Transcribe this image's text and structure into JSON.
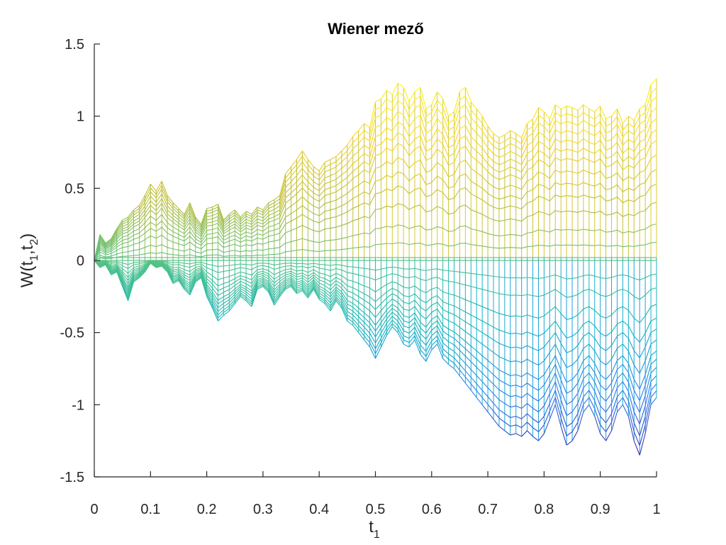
{
  "chart_data": {
    "type": "line",
    "title": "Wiener mező",
    "xlabel": "t",
    "xlabel_subscript": "1",
    "ylabel": {
      "main": "W(t",
      "sub1": "1",
      "mid": ",t",
      "sub2": "2",
      "end": ")"
    },
    "xlim": [
      0,
      1
    ],
    "ylim": [
      -1.5,
      1.5
    ],
    "xticks": [
      0,
      0.1,
      0.2,
      0.3,
      0.4,
      0.5,
      0.6,
      0.7,
      0.8,
      0.9,
      1
    ],
    "xtick_labels": [
      "0",
      "0.1",
      "0.2",
      "0.3",
      "0.4",
      "0.5",
      "0.6",
      "0.7",
      "0.8",
      "0.9",
      "1"
    ],
    "yticks": [
      -1.5,
      -1,
      -0.5,
      0,
      0.5,
      1,
      1.5
    ],
    "ytick_labels": [
      "-1.5",
      "-1",
      "-0.5",
      "0",
      "0.5",
      "1",
      "1.5"
    ],
    "grid": false,
    "colormap": "parula",
    "colormap_colors": [
      "#3e26a8",
      "#2f7df6",
      "#12b2c8",
      "#4cc28c",
      "#bcbd3a",
      "#f9d527",
      "#f9fb15"
    ],
    "series": [
      {
        "values": [
          0,
          0.18,
          0.12,
          0.15,
          0.22,
          0.28,
          0.3,
          0.35,
          0.38,
          0.45,
          0.53,
          0.48,
          0.55,
          0.45,
          0.4,
          0.36,
          0.32,
          0.4,
          0.3,
          0.25,
          0.36,
          0.37,
          0.39,
          0.28,
          0.32,
          0.35,
          0.3,
          0.34,
          0.32,
          0.37,
          0.35,
          0.4,
          0.42,
          0.45,
          0.6,
          0.65,
          0.7,
          0.76,
          0.7,
          0.65,
          0.62,
          0.68,
          0.7,
          0.72,
          0.76,
          0.8,
          0.86,
          0.9,
          0.95,
          0.92,
          1.1,
          1.12,
          1.18,
          1.15,
          1.23,
          1.2,
          1.1,
          1.17,
          1.2,
          1.05,
          1.08,
          1.17,
          1.12,
          1.0,
          1.03,
          1.17,
          1.2,
          1.1,
          1.05,
          1.0,
          0.93,
          0.88,
          0.85,
          0.87,
          0.9,
          0.88,
          0.85,
          0.95,
          0.98,
          1.06,
          1.03,
          0.98,
          1.08,
          1.05,
          1.07,
          1.06,
          1.04,
          1.08,
          1.05,
          1.03,
          1.07,
          0.98,
          1.0,
          1.05,
          0.95,
          1.0,
          0.97,
          1.05,
          1.08,
          1.22,
          1.26
        ]
      },
      {
        "values": [
          0,
          -0.05,
          -0.03,
          -0.1,
          -0.08,
          -0.18,
          -0.28,
          -0.15,
          -0.12,
          -0.08,
          -0.02,
          -0.05,
          -0.04,
          -0.08,
          -0.16,
          -0.14,
          -0.2,
          -0.24,
          -0.15,
          -0.12,
          -0.25,
          -0.33,
          -0.42,
          -0.38,
          -0.35,
          -0.3,
          -0.25,
          -0.28,
          -0.32,
          -0.2,
          -0.18,
          -0.22,
          -0.31,
          -0.25,
          -0.2,
          -0.18,
          -0.23,
          -0.21,
          -0.26,
          -0.2,
          -0.27,
          -0.3,
          -0.35,
          -0.28,
          -0.33,
          -0.42,
          -0.45,
          -0.5,
          -0.55,
          -0.6,
          -0.68,
          -0.6,
          -0.52,
          -0.46,
          -0.5,
          -0.58,
          -0.6,
          -0.55,
          -0.65,
          -0.7,
          -0.62,
          -0.58,
          -0.68,
          -0.72,
          -0.75,
          -0.8,
          -0.85,
          -0.9,
          -0.95,
          -1.0,
          -1.05,
          -1.1,
          -1.15,
          -1.18,
          -1.21,
          -1.2,
          -1.22,
          -1.18,
          -1.22,
          -1.25,
          -1.2,
          -1.1,
          -1.0,
          -1.15,
          -1.28,
          -1.25,
          -1.18,
          -1.05,
          -1.0,
          -1.08,
          -1.2,
          -1.25,
          -1.18,
          -1.05,
          -1.0,
          -1.08,
          -1.25,
          -1.35,
          -1.2,
          -1.0,
          -0.95
        ]
      }
    ]
  }
}
